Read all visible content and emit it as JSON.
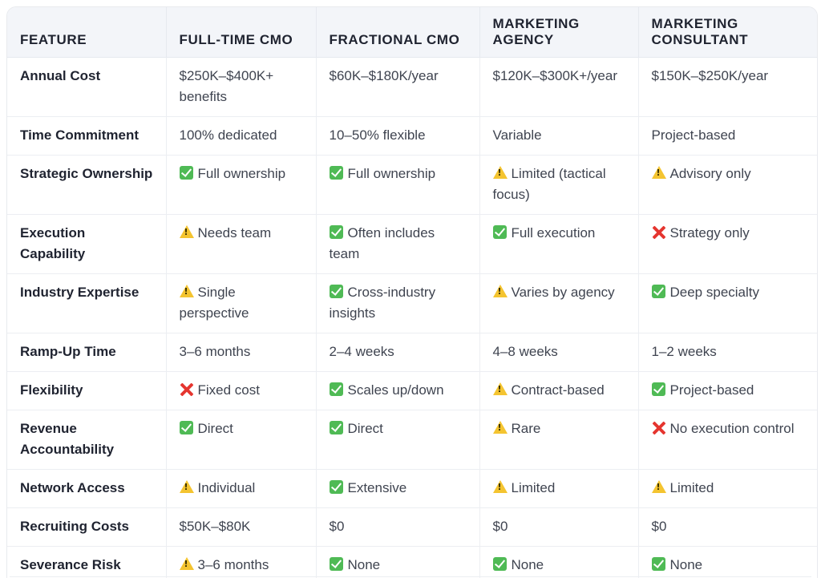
{
  "table": {
    "headers": [
      "FEATURE",
      "FULL-TIME CMO",
      "FRACTIONAL CMO",
      "MARKETING AGENCY",
      "MARKETING CONSULTANT"
    ],
    "rows": [
      {
        "feature": "Annual Cost",
        "cells": [
          {
            "icon": "",
            "text": "$250K–$400K+ benefits"
          },
          {
            "icon": "",
            "text": "$60K–$180K/year"
          },
          {
            "icon": "",
            "text": "$120K–$300K+/year"
          },
          {
            "icon": "",
            "text": "$150K–$250K/year"
          }
        ]
      },
      {
        "feature": "Time Commitment",
        "cells": [
          {
            "icon": "",
            "text": "100% dedicated"
          },
          {
            "icon": "",
            "text": "10–50% flexible"
          },
          {
            "icon": "",
            "text": "Variable"
          },
          {
            "icon": "",
            "text": "Project-based"
          }
        ]
      },
      {
        "feature": "Strategic Ownership",
        "cells": [
          {
            "icon": "check",
            "text": "Full ownership"
          },
          {
            "icon": "check",
            "text": "Full ownership"
          },
          {
            "icon": "warning",
            "text": "Limited (tactical focus)"
          },
          {
            "icon": "warning",
            "text": "Advisory only"
          }
        ]
      },
      {
        "feature": "Execution Capability",
        "cells": [
          {
            "icon": "warning",
            "text": "Needs team"
          },
          {
            "icon": "check",
            "text": "Often includes team"
          },
          {
            "icon": "check",
            "text": "Full execution"
          },
          {
            "icon": "cross",
            "text": "Strategy only"
          }
        ]
      },
      {
        "feature": "Industry Expertise",
        "cells": [
          {
            "icon": "warning",
            "text": "Single perspective"
          },
          {
            "icon": "check",
            "text": "Cross-industry insights"
          },
          {
            "icon": "warning",
            "text": "Varies by agency"
          },
          {
            "icon": "check",
            "text": "Deep specialty"
          }
        ]
      },
      {
        "feature": "Ramp-Up Time",
        "cells": [
          {
            "icon": "",
            "text": "3–6 months"
          },
          {
            "icon": "",
            "text": "2–4 weeks"
          },
          {
            "icon": "",
            "text": "4–8 weeks"
          },
          {
            "icon": "",
            "text": "1–2 weeks"
          }
        ]
      },
      {
        "feature": "Flexibility",
        "cells": [
          {
            "icon": "cross",
            "text": "Fixed cost"
          },
          {
            "icon": "check",
            "text": "Scales up/down"
          },
          {
            "icon": "warning",
            "text": "Contract-based"
          },
          {
            "icon": "check",
            "text": "Project-based"
          }
        ]
      },
      {
        "feature": "Revenue Accountability",
        "cells": [
          {
            "icon": "check",
            "text": "Direct"
          },
          {
            "icon": "check",
            "text": "Direct"
          },
          {
            "icon": "warning",
            "text": "Rare"
          },
          {
            "icon": "cross",
            "text": "No execution control"
          }
        ]
      },
      {
        "feature": "Network Access",
        "cells": [
          {
            "icon": "warning",
            "text": "Individual"
          },
          {
            "icon": "check",
            "text": "Extensive"
          },
          {
            "icon": "warning",
            "text": "Limited"
          },
          {
            "icon": "warning",
            "text": "Limited"
          }
        ]
      },
      {
        "feature": "Recruiting Costs",
        "cells": [
          {
            "icon": "",
            "text": "$50K–$80K"
          },
          {
            "icon": "",
            "text": "$0"
          },
          {
            "icon": "",
            "text": "$0"
          },
          {
            "icon": "",
            "text": "$0"
          }
        ]
      },
      {
        "feature": "Severance Risk",
        "cells": [
          {
            "icon": "warning",
            "text": "3–6 months"
          },
          {
            "icon": "check",
            "text": "None"
          },
          {
            "icon": "check",
            "text": "None"
          },
          {
            "icon": "check",
            "text": "None"
          }
        ]
      }
    ]
  },
  "colors": {
    "header_bg": "#f3f5f9",
    "border": "#eceef2",
    "check_green": "#4fba55",
    "warning_yellow": "#f4c430",
    "cross_red": "#e5352f",
    "feature_text": "#1f2330",
    "cell_text": "#3f4450"
  }
}
